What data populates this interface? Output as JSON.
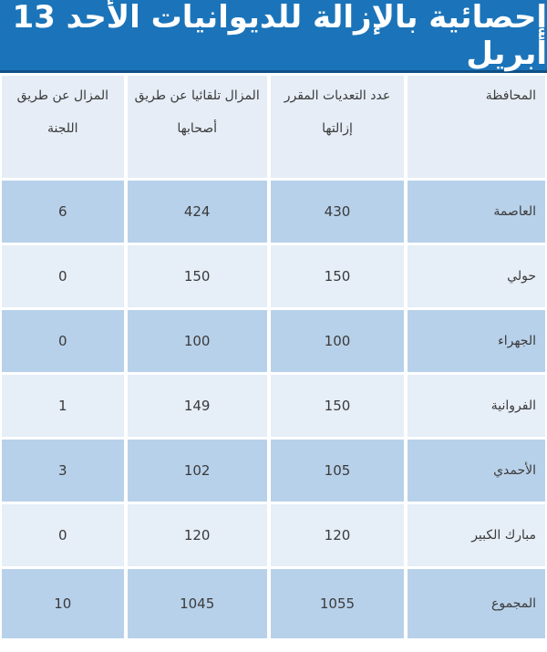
{
  "title": "إحصائية بالإزالة للديوانيات الأحد 13 أبريل",
  "colors": {
    "title_bg": "#1b74b9",
    "row_dark": "#b8d1ea",
    "row_light": "#e6eef7"
  },
  "table": {
    "headers": [
      "المحافظة",
      "عدد التعديات المقرر إزالتها",
      "المزال تلقائيا عن طريق أصحابها",
      "المزال عن طريق اللجنة"
    ],
    "rows": [
      [
        "العاصمة",
        "430",
        "424",
        "6"
      ],
      [
        "حولي",
        "150",
        "150",
        "0"
      ],
      [
        "الجهراء",
        "100",
        "100",
        "0"
      ],
      [
        "الفروانية",
        "150",
        "149",
        "1"
      ],
      [
        "الأحمدي",
        "105",
        "102",
        "3"
      ],
      [
        "مبارك الكبير",
        "120",
        "120",
        "0"
      ],
      [
        "المجموع",
        "1055",
        "1045",
        "10"
      ]
    ]
  }
}
